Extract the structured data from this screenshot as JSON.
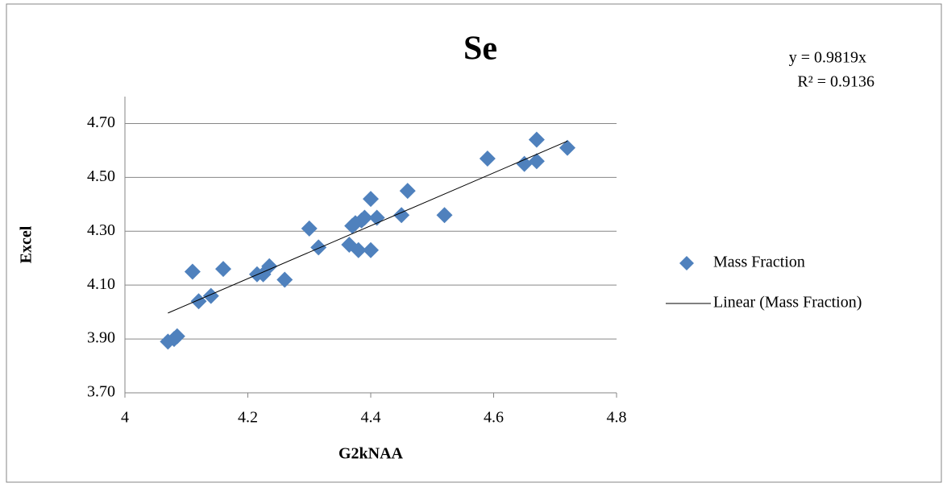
{
  "chart_data": {
    "type": "scatter",
    "title": "Se",
    "x_label": "G2kNAA",
    "y_label": "Excel",
    "series": [
      {
        "name": "Mass Fraction",
        "color": "#4f81bd",
        "x": [
          4.07,
          4.08,
          4.085,
          4.11,
          4.12,
          4.14,
          4.16,
          4.215,
          4.225,
          4.235,
          4.26,
          4.3,
          4.315,
          4.365,
          4.37,
          4.375,
          4.38,
          4.385,
          4.39,
          4.4,
          4.4,
          4.41,
          4.45,
          4.46,
          4.52,
          4.59,
          4.65,
          4.67,
          4.67,
          4.72
        ],
        "values": [
          3.89,
          3.9,
          3.91,
          4.15,
          4.04,
          4.06,
          4.16,
          4.14,
          4.14,
          4.17,
          4.12,
          4.31,
          4.24,
          4.25,
          4.32,
          4.33,
          4.23,
          4.34,
          4.35,
          4.42,
          4.23,
          4.35,
          4.36,
          4.45,
          4.36,
          4.57,
          4.55,
          4.64,
          4.56,
          4.61
        ]
      }
    ],
    "trendline": {
      "name": "Linear (Mass Fraction)",
      "slope": 0.9819,
      "equation_label": "y = 0.9819x",
      "r2": 0.9136,
      "r2_label": "R² = 0.9136",
      "color": "#000000"
    },
    "xlim": [
      4,
      4.8
    ],
    "xticks": [
      4,
      4.2,
      4.4,
      4.6,
      4.8
    ],
    "ylim": [
      3.7,
      4.8
    ],
    "yticks": [
      {
        "value": 3.7,
        "label": "3.70"
      },
      {
        "value": 3.9,
        "label": "3.90"
      },
      {
        "value": 4.1,
        "label": "4.10"
      },
      {
        "value": 4.3,
        "label": "4.30"
      },
      {
        "value": 4.5,
        "label": "4.50"
      },
      {
        "value": 4.7,
        "label": "4.70"
      }
    ],
    "grid": true
  }
}
